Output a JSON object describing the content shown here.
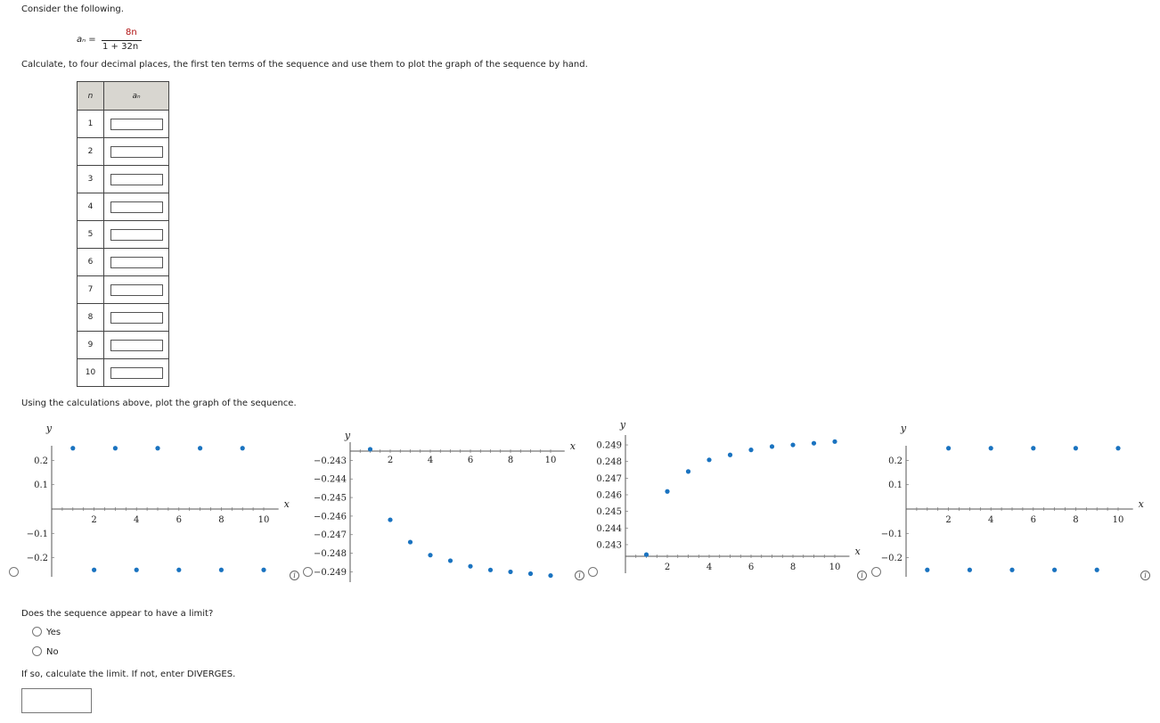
{
  "prompt": "Consider the following.",
  "formula": {
    "lhs": "aₙ =",
    "numerator": "8n",
    "denominator": "1 + 32n"
  },
  "instruction": "Calculate, to four decimal places, the first ten terms of the sequence and use them to plot the graph of the sequence by hand.",
  "table": {
    "headers": [
      "n",
      "aₙ"
    ],
    "rows": [
      "1",
      "2",
      "3",
      "4",
      "5",
      "6",
      "7",
      "8",
      "9",
      "10"
    ]
  },
  "plot_prompt": "Using the calculations above, plot the graph of the sequence.",
  "graphs": [
    {
      "xticks": [
        "2",
        "4",
        "6",
        "8",
        "10"
      ],
      "yticks": [
        "0.2",
        "0.1",
        "−0.1",
        "−0.2"
      ],
      "xlabel": "x",
      "ylabel": "y",
      "points": [
        [
          1,
          0.25
        ],
        [
          2,
          -0.25
        ],
        [
          3,
          0.25
        ],
        [
          4,
          -0.25
        ],
        [
          5,
          0.25
        ],
        [
          6,
          -0.25
        ],
        [
          7,
          0.25
        ],
        [
          8,
          -0.25
        ],
        [
          9,
          0.25
        ],
        [
          10,
          -0.25
        ]
      ]
    },
    {
      "xticks": [
        "2",
        "4",
        "6",
        "8",
        "10"
      ],
      "yticks": [
        "−0.243",
        "−0.244",
        "−0.245",
        "−0.246",
        "−0.247",
        "−0.248",
        "−0.249"
      ],
      "xlabel": "x",
      "ylabel": "y",
      "points": [
        [
          1,
          -0.2424
        ],
        [
          2,
          -0.2462
        ],
        [
          3,
          -0.2474
        ],
        [
          4,
          -0.2481
        ],
        [
          5,
          -0.2484
        ],
        [
          6,
          -0.2487
        ],
        [
          7,
          -0.2489
        ],
        [
          8,
          -0.249
        ],
        [
          9,
          -0.2491
        ],
        [
          10,
          -0.2492
        ]
      ]
    },
    {
      "xticks": [
        "2",
        "4",
        "6",
        "8",
        "10"
      ],
      "yticks": [
        "0.249",
        "0.248",
        "0.247",
        "0.246",
        "0.245",
        "0.244",
        "0.243"
      ],
      "xlabel": "x",
      "ylabel": "y",
      "points": [
        [
          1,
          0.2424
        ],
        [
          2,
          0.2462
        ],
        [
          3,
          0.2474
        ],
        [
          4,
          0.2481
        ],
        [
          5,
          0.2484
        ],
        [
          6,
          0.2487
        ],
        [
          7,
          0.2489
        ],
        [
          8,
          0.249
        ],
        [
          9,
          0.2491
        ],
        [
          10,
          0.2492
        ]
      ]
    },
    {
      "xticks": [
        "2",
        "4",
        "6",
        "8",
        "10"
      ],
      "yticks": [
        "0.2",
        "0.1",
        "−0.1",
        "−0.2"
      ],
      "xlabel": "x",
      "ylabel": "y",
      "points": [
        [
          1,
          -0.25
        ],
        [
          2,
          0.25
        ],
        [
          3,
          -0.25
        ],
        [
          4,
          0.25
        ],
        [
          5,
          -0.25
        ],
        [
          6,
          0.25
        ],
        [
          7,
          -0.25
        ],
        [
          8,
          0.25
        ],
        [
          9,
          -0.25
        ],
        [
          10,
          0.25
        ]
      ]
    }
  ],
  "limit_question": "Does the sequence appear to have a limit?",
  "options": [
    "Yes",
    "No"
  ],
  "final_prompt": "If so, calculate the limit. If not, enter DIVERGES.",
  "colors": {
    "point": "#1a73c0",
    "table_header": "#d8d6d0"
  },
  "icons": [
    "radio-icon",
    "info-icon"
  ]
}
